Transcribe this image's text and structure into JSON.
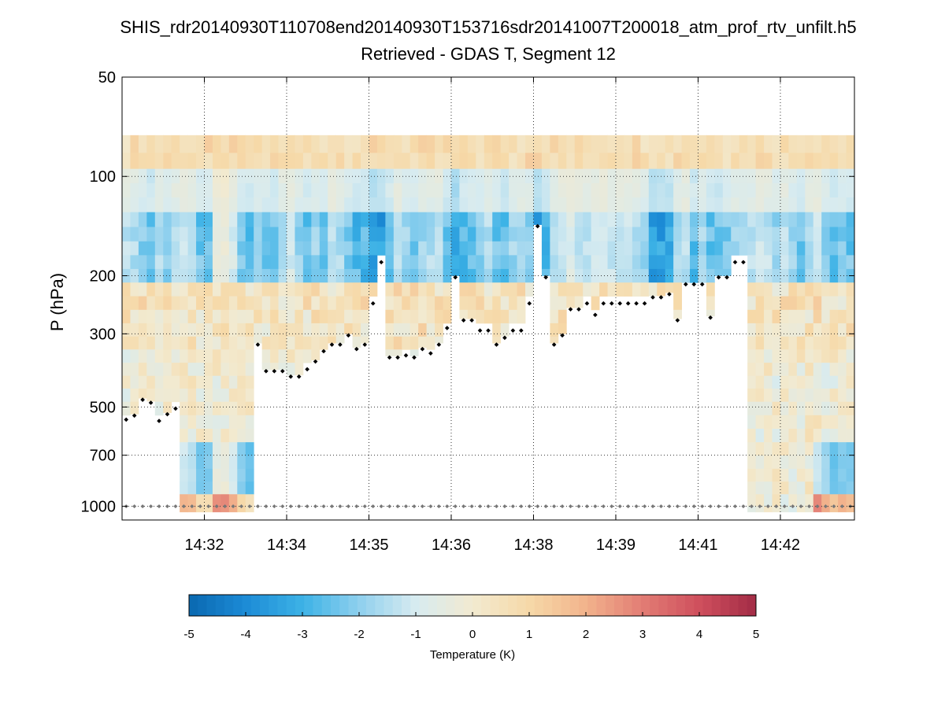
{
  "chart_data": {
    "type": "heatmap",
    "title": "SHIS_rdr20140930T110708end20140930T153716sdr20141007T200018_atm_prof_rtv_unfilt.h5",
    "subtitle": "Retrieved - GDAS T, Segment 12",
    "xlabel": "",
    "ylabel": "P (hPa)",
    "yscale": "log",
    "ylim": [
      50,
      1100
    ],
    "y_ticks": [
      50,
      100,
      200,
      300,
      500,
      700,
      1000
    ],
    "y_tick_labels": [
      "50",
      "100",
      "200",
      "300",
      "500",
      "700",
      "1000"
    ],
    "x_tick_labels": [
      "14:32",
      "14:34",
      "14:35",
      "14:36",
      "14:38",
      "14:39",
      "14:41",
      "14:42"
    ],
    "x_tick_index": [
      10,
      20,
      30,
      40,
      50,
      60,
      70,
      80
    ],
    "n_profiles": 89,
    "grid": true,
    "colorbar": {
      "label": "Temperature (K)",
      "range": [
        -5,
        5
      ],
      "ticks": [
        "-5",
        "-4",
        "-3",
        "-2",
        "-1",
        "0",
        "1",
        "2",
        "3",
        "4",
        "5"
      ]
    },
    "pressure_levels_hPa": [
      80,
      90,
      100,
      110,
      122,
      135,
      150,
      165,
      182,
      200,
      220,
      242,
      266,
      292,
      320,
      350,
      385,
      420,
      460,
      505,
      555,
      610,
      670,
      735,
      805,
      880,
      960,
      1040
    ],
    "profile_lowest_valid_pressure_hPa": [
      540,
      525,
      470,
      480,
      545,
      520,
      500,
      1040,
      1040,
      1040,
      1040,
      1040,
      1040,
      1040,
      1040,
      1040,
      320,
      385,
      385,
      385,
      400,
      400,
      380,
      360,
      335,
      320,
      320,
      300,
      330,
      320,
      240,
      180,
      350,
      350,
      345,
      350,
      330,
      340,
      320,
      285,
      200,
      270,
      270,
      290,
      290,
      320,
      305,
      290,
      290,
      240,
      140,
      200,
      320,
      300,
      250,
      250,
      240,
      260,
      240,
      240,
      240,
      240,
      240,
      240,
      230,
      230,
      225,
      270,
      210,
      210,
      210,
      265,
      200,
      200,
      180,
      180,
      1040,
      1040,
      1040,
      1040,
      1040,
      1040,
      1040,
      1040,
      1040,
      1040,
      1040,
      1040,
      1040
    ],
    "profile_anomaly_K": [
      -1.6,
      -1.9,
      -2.6,
      -3.1,
      -2.0,
      -2.8,
      -1.8,
      -1.4,
      -1.7,
      -2.9,
      -2.8,
      -0.6,
      -0.4,
      -1.2,
      -2.6,
      -3.1,
      -2.3,
      -2.8,
      -3.0,
      -1.7,
      -1.2,
      -2.3,
      -3.0,
      -2.4,
      -2.9,
      -1.5,
      -1.9,
      -2.6,
      -3.3,
      -3.2,
      -4.3,
      -4.1,
      -2.9,
      -1.7,
      -2.3,
      -2.9,
      -2.1,
      -1.9,
      -1.6,
      -3.0,
      -4.6,
      -3.3,
      -3.0,
      -2.6,
      -1.7,
      -2.9,
      -3.2,
      -2.3,
      -1.9,
      -2.3,
      -4.2,
      -3.3,
      -1.6,
      -1.4,
      -1.0,
      -1.6,
      -1.8,
      -1.2,
      -1.3,
      -1.5,
      -1.7,
      -1.4,
      -1.9,
      -2.3,
      -4.4,
      -4.1,
      -3.6,
      -2.0,
      -1.6,
      -3.0,
      -2.0,
      -2.9,
      -3.3,
      -2.6,
      -2.2,
      -2.2,
      -1.9,
      -1.3,
      -1.7,
      -2.4,
      -1.6,
      -2.4,
      -3.0,
      -1.9,
      -1.5,
      -2.3,
      -3.1,
      -2.6,
      -2.8
    ],
    "surface_pressure_hPa": 1000,
    "markers": "black diamonds at the lowest retrieved level of each profile; grey diamonds along the surface"
  }
}
